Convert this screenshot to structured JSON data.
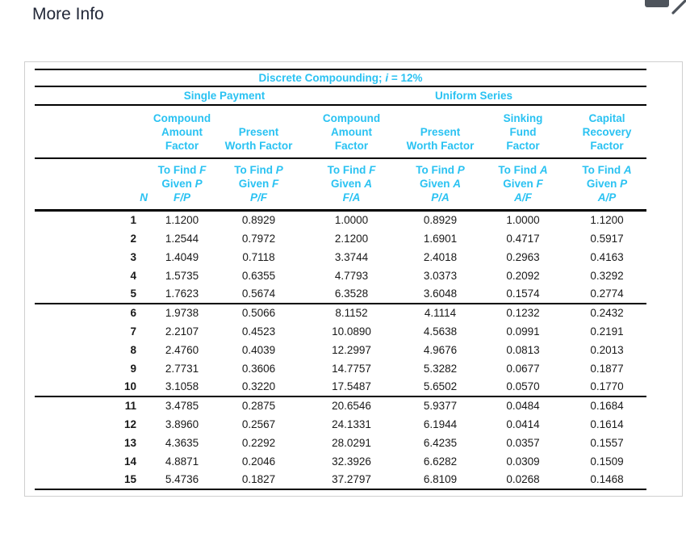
{
  "page": {
    "title": "More Info"
  },
  "window_controls": {
    "titlebar_button_icon": "titlebar-button-icon",
    "close_icon": "close-icon"
  },
  "colors": {
    "accent_cyan": "#2ac2f2",
    "rule_black": "#000000",
    "data_text": "#191919",
    "panel_border": "#cfcfcf",
    "control_gray": "#4e545c"
  },
  "table": {
    "title": {
      "prefix": "Discrete Compounding; ",
      "i_symbol": "i",
      "suffix": " = 12%"
    },
    "groups": [
      {
        "label": "Single Payment"
      },
      {
        "label": "Uniform Series"
      }
    ],
    "n_header": "N",
    "to_find_label": "To Find",
    "given_label": "Given",
    "columns": [
      {
        "name_lines": [
          "Compound",
          "Amount",
          "Factor"
        ],
        "find": "F",
        "given": "P",
        "ratio": "F/P"
      },
      {
        "name_lines": [
          "Present",
          "Worth Factor"
        ],
        "find": "P",
        "given": "F",
        "ratio": "P/F"
      },
      {
        "name_lines": [
          "Compound",
          "Amount",
          "Factor"
        ],
        "find": "F",
        "given": "A",
        "ratio": "F/A"
      },
      {
        "name_lines": [
          "Present",
          "Worth Factor"
        ],
        "find": "P",
        "given": "A",
        "ratio": "P/A"
      },
      {
        "name_lines": [
          "Sinking",
          "Fund",
          "Factor"
        ],
        "find": "A",
        "given": "F",
        "ratio": "A/F"
      },
      {
        "name_lines": [
          "Capital",
          "Recovery",
          "Factor"
        ],
        "find": "A",
        "given": "P",
        "ratio": "A/P"
      }
    ],
    "rows": [
      [
        "1",
        "1.1200",
        "0.8929",
        "1.0000",
        "0.8929",
        "1.0000",
        "1.1200"
      ],
      [
        "2",
        "1.2544",
        "0.7972",
        "2.1200",
        "1.6901",
        "0.4717",
        "0.5917"
      ],
      [
        "3",
        "1.4049",
        "0.7118",
        "3.3744",
        "2.4018",
        "0.2963",
        "0.4163"
      ],
      [
        "4",
        "1.5735",
        "0.6355",
        "4.7793",
        "3.0373",
        "0.2092",
        "0.3292"
      ],
      [
        "5",
        "1.7623",
        "0.5674",
        "6.3528",
        "3.6048",
        "0.1574",
        "0.2774"
      ],
      [
        "6",
        "1.9738",
        "0.5066",
        "8.1152",
        "4.1114",
        "0.1232",
        "0.2432"
      ],
      [
        "7",
        "2.2107",
        "0.4523",
        "10.0890",
        "4.5638",
        "0.0991",
        "0.2191"
      ],
      [
        "8",
        "2.4760",
        "0.4039",
        "12.2997",
        "4.9676",
        "0.0813",
        "0.2013"
      ],
      [
        "9",
        "2.7731",
        "0.3606",
        "14.7757",
        "5.3282",
        "0.0677",
        "0.1877"
      ],
      [
        "10",
        "3.1058",
        "0.3220",
        "17.5487",
        "5.6502",
        "0.0570",
        "0.1770"
      ],
      [
        "11",
        "3.4785",
        "0.2875",
        "20.6546",
        "5.9377",
        "0.0484",
        "0.1684"
      ],
      [
        "12",
        "3.8960",
        "0.2567",
        "24.1331",
        "6.1944",
        "0.0414",
        "0.1614"
      ],
      [
        "13",
        "4.3635",
        "0.2292",
        "28.0291",
        "6.4235",
        "0.0357",
        "0.1557"
      ],
      [
        "14",
        "4.8871",
        "0.2046",
        "32.3926",
        "6.6282",
        "0.0309",
        "0.1509"
      ],
      [
        "15",
        "5.4736",
        "0.1827",
        "37.2797",
        "6.8109",
        "0.0268",
        "0.1468"
      ]
    ]
  }
}
